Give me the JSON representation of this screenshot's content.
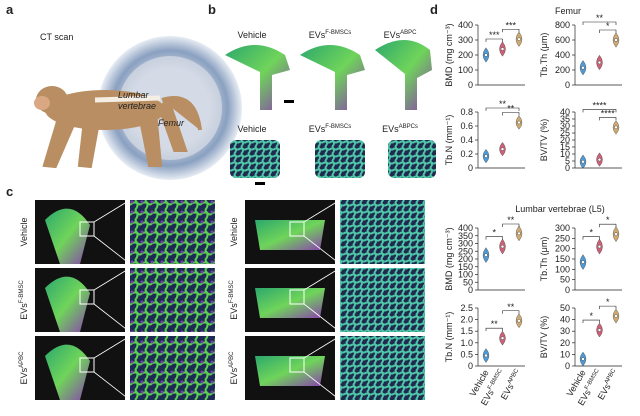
{
  "panel_a": {
    "letter": "a",
    "title": "CT scan",
    "label_lumbar": [
      "Lumbar",
      "vertebrae"
    ],
    "label_femur": "Femur"
  },
  "panel_b": {
    "letter": "b",
    "top_labels": [
      {
        "base": "Vehicle",
        "sup": ""
      },
      {
        "base": "EVs",
        "sup": "F-BMSCs"
      },
      {
        "base": "EVs",
        "sup": "ABPC"
      }
    ],
    "bottom_labels": [
      {
        "base": "Vehicle",
        "sup": ""
      },
      {
        "base": "EVs",
        "sup": "F-BMSCs"
      },
      {
        "base": "EVs",
        "sup": "ABPCs"
      }
    ]
  },
  "panel_c": {
    "letter": "c",
    "row_labels": [
      {
        "base": "Vehicle",
        "sup": ""
      },
      {
        "base": "EVs",
        "sup": "F-BMSC"
      },
      {
        "base": "EVs",
        "sup": "APBC"
      }
    ]
  },
  "chart_data": {
    "type": "violin",
    "letter": "d",
    "groups": [
      {
        "base": "Vehicle",
        "sup": "",
        "color": "#3d8fd1"
      },
      {
        "base": "EVs",
        "sup": "F-BMSC",
        "color": "#c8506a"
      },
      {
        "base": "EVs",
        "sup": "APBC",
        "color": "#c9a062"
      }
    ],
    "sections": [
      "Femur",
      "Lumbar vertebrae (L5)"
    ],
    "plots": [
      {
        "ylabel": "BMD (mg cm⁻³)",
        "ylim": [
          0,
          400
        ],
        "yticks": [
          0,
          100,
          200,
          300,
          400
        ],
        "values": [
          200,
          240,
          305
        ],
        "significance": {
          "vehicle_fbmsc": "***",
          "fbmsc_apbc": "***"
        }
      },
      {
        "ylabel": "Tb.Th (μm)",
        "ylim": [
          0,
          800
        ],
        "yticks": [
          0,
          200,
          400,
          600,
          800
        ],
        "values": [
          230,
          300,
          600
        ],
        "significance": {
          "vehicle_apbc": "**",
          "fbmsc_apbc": "*"
        }
      },
      {
        "ylabel": "Tb.N (mm⁻¹)",
        "ylim": [
          0,
          0.8
        ],
        "yticks": [
          0,
          0.2,
          0.4,
          0.6,
          0.8
        ],
        "values": [
          0.17,
          0.27,
          0.65
        ],
        "significance": {
          "vehicle_apbc": "**",
          "fbmsc_apbc": "**"
        }
      },
      {
        "ylabel": "BV/TV (%)",
        "ylim": [
          0,
          40
        ],
        "yticks": [
          0,
          5,
          10,
          15,
          20,
          25,
          30,
          35,
          40
        ],
        "values": [
          4.5,
          6,
          29
        ],
        "significance": {
          "vehicle_apbc": "****",
          "fbmsc_apbc": "****"
        }
      },
      {
        "ylabel": "BMD (mg cm⁻³)",
        "ylim": [
          0,
          400
        ],
        "yticks": [
          0,
          50,
          100,
          150,
          200,
          250,
          300,
          350,
          400
        ],
        "values": [
          225,
          280,
          365
        ],
        "significance": {
          "vehicle_fbmsc": "*",
          "fbmsc_apbc": "**"
        }
      },
      {
        "ylabel": "Tb.Th (μm)",
        "ylim": [
          0,
          300
        ],
        "yticks": [
          0,
          50,
          100,
          150,
          200,
          250,
          300
        ],
        "values": [
          135,
          210,
          270
        ],
        "significance": {
          "vehicle_fbmsc": "*",
          "fbmsc_apbc": "*"
        }
      },
      {
        "ylabel": "Tb.N (mm⁻¹)",
        "ylim": [
          0,
          2.5
        ],
        "yticks": [
          0,
          0.5,
          {
            "value": 1,
            "label": "1.0"
          },
          1.5,
          {
            "value": 2,
            "label": "2.0"
          },
          2.5
        ],
        "values": [
          0.45,
          1.2,
          1.95
        ],
        "significance": {
          "vehicle_fbmsc": "**",
          "fbmsc_apbc": "**"
        }
      },
      {
        "ylabel": "BV/TV (%)",
        "ylim": [
          0,
          50
        ],
        "yticks": [
          0,
          10,
          20,
          30,
          40,
          50
        ],
        "values": [
          6,
          31,
          43
        ],
        "significance": {
          "vehicle_fbmsc": "*",
          "fbmsc_apbc": "*"
        }
      }
    ]
  }
}
